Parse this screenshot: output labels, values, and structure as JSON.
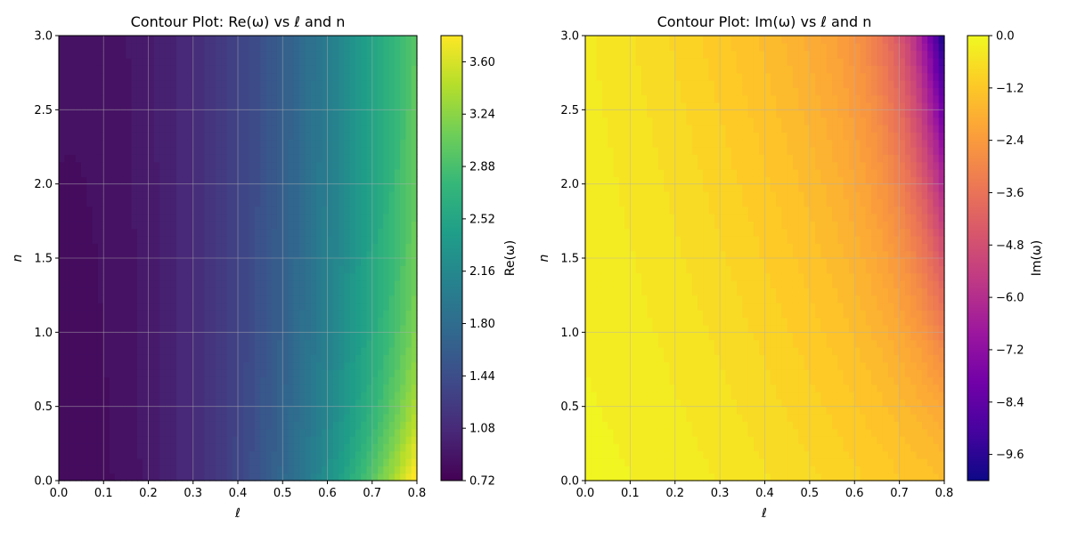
{
  "chart_data": [
    {
      "type": "contour",
      "title": "Contour Plot: Re(ω) vs ℓ and n",
      "xlabel": "ℓ",
      "ylabel": "n",
      "xlim": [
        0.0,
        0.8
      ],
      "ylim": [
        0.0,
        3.0
      ],
      "x_ticks": [
        "0.0",
        "0.1",
        "0.2",
        "0.3",
        "0.4",
        "0.5",
        "0.6",
        "0.7",
        "0.8"
      ],
      "y_ticks": [
        "0.0",
        "0.5",
        "1.0",
        "1.5",
        "2.0",
        "2.5",
        "3.0"
      ],
      "grid": true,
      "colormap": "viridis",
      "colorbar": {
        "label": "Re(ω)",
        "range": [
          0.72,
          3.78
        ],
        "ticks": [
          "0.72",
          "1.08",
          "1.44",
          "1.80",
          "2.16",
          "2.52",
          "2.88",
          "3.24",
          "3.60"
        ]
      },
      "samples": [
        {
          "l": 0.0,
          "n": 0.0,
          "value": 0.8
        },
        {
          "l": 0.4,
          "n": 1.5,
          "value": 1.6
        },
        {
          "l": 0.6,
          "n": 0.0,
          "value": 2.7
        },
        {
          "l": 0.8,
          "n": 3.0,
          "value": 2.3
        },
        {
          "l": 0.8,
          "n": 0.0,
          "value": 3.75
        }
      ]
    },
    {
      "type": "contour",
      "title": "Contour Plot: Im(ω) vs ℓ and n",
      "xlabel": "ℓ",
      "ylabel": "n",
      "xlim": [
        0.0,
        0.8
      ],
      "ylim": [
        0.0,
        3.0
      ],
      "x_ticks": [
        "0.0",
        "0.1",
        "0.2",
        "0.3",
        "0.4",
        "0.5",
        "0.6",
        "0.7",
        "0.8"
      ],
      "y_ticks": [
        "0.0",
        "0.5",
        "1.0",
        "1.5",
        "2.0",
        "2.5",
        "3.0"
      ],
      "grid": true,
      "colormap": "plasma",
      "colorbar": {
        "label": "Im(ω)",
        "range": [
          -10.2,
          0.0
        ],
        "ticks": [
          "0.0",
          "−1.2",
          "−2.4",
          "−3.6",
          "−4.8",
          "−6.0",
          "−7.2",
          "−8.4",
          "−9.6"
        ]
      },
      "samples": [
        {
          "l": 0.0,
          "n": 0.0,
          "value": -0.1
        },
        {
          "l": 0.4,
          "n": 1.5,
          "value": -1.2
        },
        {
          "l": 0.7,
          "n": 1.5,
          "value": -3.0
        },
        {
          "l": 0.8,
          "n": 0.0,
          "value": -1.8
        },
        {
          "l": 0.8,
          "n": 3.0,
          "value": -10.2
        }
      ]
    }
  ]
}
